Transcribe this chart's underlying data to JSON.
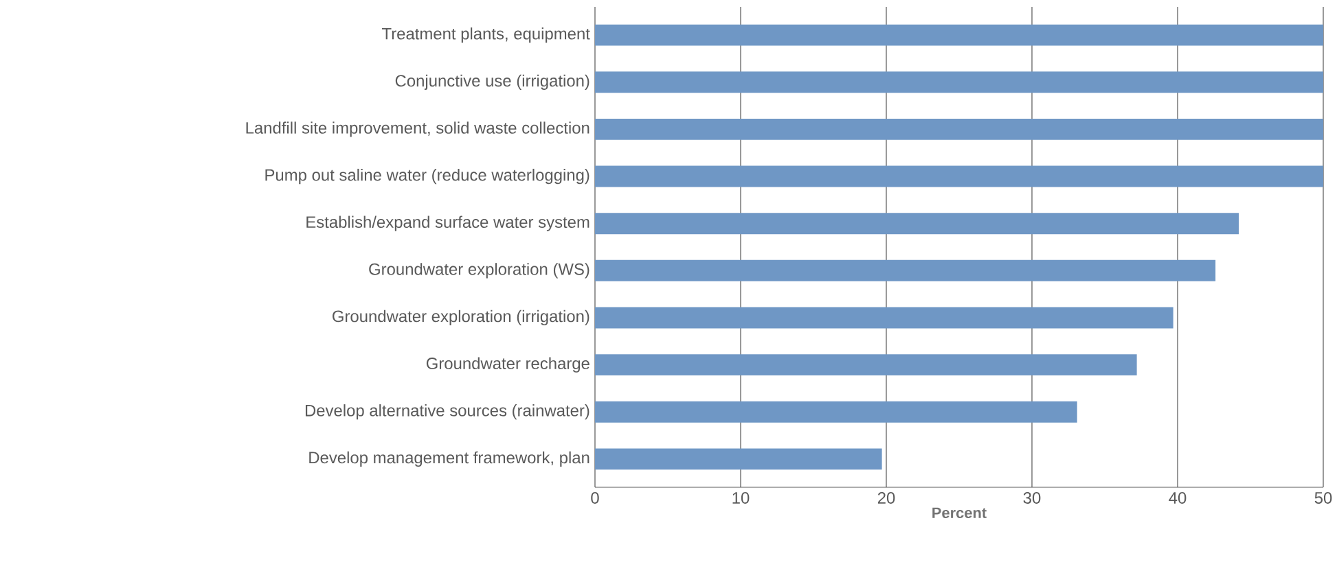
{
  "chart_data": {
    "type": "bar",
    "orientation": "horizontal",
    "xlabel": "Percent",
    "categories": [
      "Treatment plants, equipment",
      "Conjunctive use (irrigation)",
      "Landfill site improvement, solid waste collection",
      "Pump out saline water (reduce waterlogging)",
      "Establish/expand surface water system",
      "Groundwater exploration (WS)",
      "Groundwater exploration (irrigation)",
      "Groundwater recharge",
      "Develop alternative sources (rainwater)",
      "Develop management framework, plan"
    ],
    "values": [
      50,
      50,
      50,
      50,
      44.2,
      42.6,
      39.7,
      37.2,
      33.1,
      19.7
    ],
    "color": "#6f97c5",
    "xlim": [
      0,
      50
    ],
    "xticks": [
      0,
      10,
      20,
      30,
      40,
      50
    ],
    "grid": "x"
  }
}
